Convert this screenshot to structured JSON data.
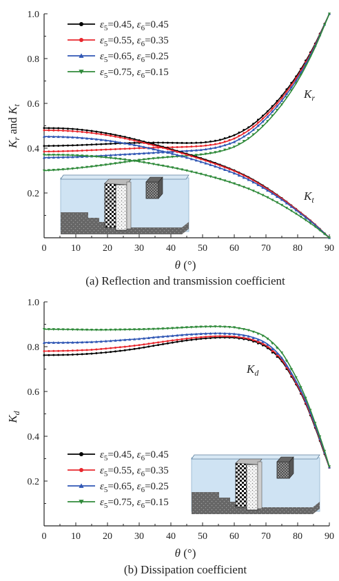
{
  "chart_data": [
    {
      "type": "line",
      "caption": "(a) Reflection and transmission coefficient",
      "xlabel": "θ (°)",
      "ylabel": "K_r and K_t",
      "xlim": [
        0,
        90
      ],
      "ylim": [
        0,
        1.0
      ],
      "xticks": [
        "0",
        "10",
        "20",
        "30",
        "40",
        "50",
        "60",
        "70",
        "80",
        "90"
      ],
      "yticks": [
        "0.2",
        "0.4",
        "0.6",
        "0.8",
        "1.0"
      ],
      "legend_position": "top-left",
      "annotations": [
        {
          "text": "K_r",
          "at_x": 81,
          "at_y": 0.62
        },
        {
          "text": "K_t",
          "at_x": 81,
          "at_y": 0.19
        }
      ],
      "x": [
        0,
        5,
        10,
        15,
        20,
        25,
        30,
        35,
        40,
        45,
        50,
        55,
        60,
        65,
        70,
        75,
        80,
        85,
        90
      ],
      "series": [
        {
          "name": "ε5=0.45, ε6=0.45",
          "color": "#000000",
          "marker": "circle",
          "group": "Kr",
          "values": [
            0.41,
            0.411,
            0.413,
            0.416,
            0.419,
            0.422,
            0.424,
            0.425,
            0.424,
            0.423,
            0.425,
            0.435,
            0.458,
            0.497,
            0.557,
            0.634,
            0.73,
            0.852,
            1.0
          ]
        },
        {
          "name": "ε5=0.55, ε6=0.35",
          "color": "#e8262c",
          "marker": "circle",
          "group": "Kr",
          "values": [
            0.385,
            0.386,
            0.388,
            0.391,
            0.394,
            0.397,
            0.4,
            0.402,
            0.404,
            0.406,
            0.41,
            0.42,
            0.443,
            0.484,
            0.545,
            0.624,
            0.722,
            0.847,
            1.0
          ]
        },
        {
          "name": "ε5=0.65, ε6=0.25",
          "color": "#2f56b4",
          "marker": "triangle-up",
          "group": "Kr",
          "values": [
            0.358,
            0.359,
            0.361,
            0.364,
            0.368,
            0.372,
            0.376,
            0.38,
            0.384,
            0.388,
            0.393,
            0.405,
            0.428,
            0.47,
            0.532,
            0.612,
            0.712,
            0.842,
            1.0
          ]
        },
        {
          "name": "ε5=0.75, ε6=0.15",
          "color": "#2f8a3a",
          "marker": "triangle-down",
          "group": "Kr",
          "values": [
            0.3,
            0.304,
            0.31,
            0.318,
            0.327,
            0.337,
            0.347,
            0.355,
            0.361,
            0.366,
            0.372,
            0.384,
            0.406,
            0.448,
            0.512,
            0.595,
            0.7,
            0.835,
            1.0
          ]
        },
        {
          "name": "ε5=0.45, ε6=0.45",
          "color": "#000000",
          "marker": "circle",
          "group": "Kt",
          "values": [
            0.49,
            0.489,
            0.485,
            0.477,
            0.466,
            0.452,
            0.435,
            0.416,
            0.396,
            0.375,
            0.353,
            0.329,
            0.301,
            0.267,
            0.225,
            0.177,
            0.123,
            0.066,
            0.0
          ]
        },
        {
          "name": "ε5=0.55, ε6=0.35",
          "color": "#e8262c",
          "marker": "circle",
          "group": "Kt",
          "values": [
            0.48,
            0.479,
            0.475,
            0.468,
            0.458,
            0.445,
            0.429,
            0.411,
            0.392,
            0.371,
            0.349,
            0.325,
            0.298,
            0.264,
            0.222,
            0.175,
            0.122,
            0.065,
            0.0
          ]
        },
        {
          "name": "ε5=0.65, ε6=0.25",
          "color": "#2f56b4",
          "marker": "triangle-up",
          "group": "Kt",
          "values": [
            0.452,
            0.451,
            0.448,
            0.442,
            0.434,
            0.423,
            0.41,
            0.394,
            0.377,
            0.358,
            0.337,
            0.314,
            0.288,
            0.256,
            0.216,
            0.17,
            0.118,
            0.063,
            0.0
          ]
        },
        {
          "name": "ε5=0.75, ε6=0.15",
          "color": "#2f8a3a",
          "marker": "triangle-down",
          "group": "Kt",
          "values": [
            0.37,
            0.37,
            0.368,
            0.364,
            0.358,
            0.35,
            0.34,
            0.328,
            0.315,
            0.3,
            0.283,
            0.264,
            0.242,
            0.216,
            0.184,
            0.146,
            0.103,
            0.055,
            0.0
          ]
        }
      ]
    },
    {
      "type": "line",
      "caption": "(b) Dissipation coefficient",
      "xlabel": "θ (°)",
      "ylabel": "K_d",
      "xlim": [
        0,
        90
      ],
      "ylim": [
        0,
        1.0
      ],
      "xticks": [
        "0",
        "10",
        "20",
        "30",
        "40",
        "50",
        "60",
        "70",
        "80",
        "90"
      ],
      "yticks": [
        "0.2",
        "0.4",
        "0.6",
        "0.8",
        "1.0"
      ],
      "legend_position": "bottom-left",
      "annotations": [
        {
          "text": "K_d",
          "at_x": 67,
          "at_y": 0.69
        }
      ],
      "x": [
        0,
        5,
        10,
        15,
        20,
        25,
        30,
        35,
        40,
        45,
        50,
        55,
        60,
        65,
        70,
        75,
        80,
        83,
        86,
        88,
        90
      ],
      "series": [
        {
          "name": "ε5=0.45, ε6=0.45",
          "color": "#000000",
          "marker": "circle",
          "values": [
            0.762,
            0.763,
            0.765,
            0.769,
            0.775,
            0.783,
            0.793,
            0.805,
            0.817,
            0.828,
            0.836,
            0.841,
            0.84,
            0.829,
            0.8,
            0.735,
            0.62,
            0.53,
            0.42,
            0.34,
            0.26
          ]
        },
        {
          "name": "ε5=0.55, ε6=0.35",
          "color": "#e8262c",
          "marker": "circle",
          "values": [
            0.78,
            0.781,
            0.783,
            0.786,
            0.792,
            0.799,
            0.807,
            0.817,
            0.827,
            0.836,
            0.843,
            0.847,
            0.845,
            0.834,
            0.806,
            0.741,
            0.625,
            0.535,
            0.425,
            0.345,
            0.26
          ]
        },
        {
          "name": "ε5=0.65, ε6=0.25",
          "color": "#2f56b4",
          "marker": "triangle-up",
          "values": [
            0.818,
            0.818,
            0.819,
            0.821,
            0.825,
            0.83,
            0.835,
            0.842,
            0.848,
            0.854,
            0.858,
            0.86,
            0.857,
            0.845,
            0.816,
            0.75,
            0.633,
            0.542,
            0.43,
            0.35,
            0.262
          ]
        },
        {
          "name": "ε5=0.75, ε6=0.15",
          "color": "#2f8a3a",
          "marker": "triangle-down",
          "values": [
            0.878,
            0.877,
            0.876,
            0.875,
            0.875,
            0.876,
            0.877,
            0.879,
            0.882,
            0.886,
            0.889,
            0.89,
            0.886,
            0.872,
            0.842,
            0.773,
            0.65,
            0.555,
            0.44,
            0.357,
            0.265
          ]
        }
      ]
    }
  ]
}
